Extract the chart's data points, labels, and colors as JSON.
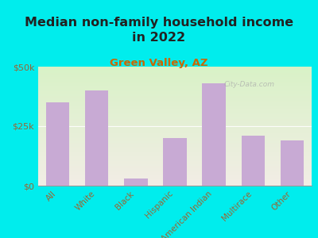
{
  "title": "Median non-family household income\nin 2022",
  "subtitle": "Green Valley, AZ",
  "categories": [
    "All",
    "White",
    "Black",
    "Hispanic",
    "American Indian",
    "Multirace",
    "Other"
  ],
  "values": [
    35000,
    40000,
    3000,
    20000,
    43000,
    21000,
    19000
  ],
  "bar_color": "#c8aad4",
  "background_outer": "#00eded",
  "title_color": "#222222",
  "subtitle_color": "#cc6600",
  "tick_label_color": "#996633",
  "watermark": "City-Data.com",
  "ylim": [
    0,
    50000
  ],
  "ytick_labels": [
    "$0",
    "$25k",
    "$50k"
  ],
  "ytick_values": [
    0,
    25000,
    50000
  ]
}
